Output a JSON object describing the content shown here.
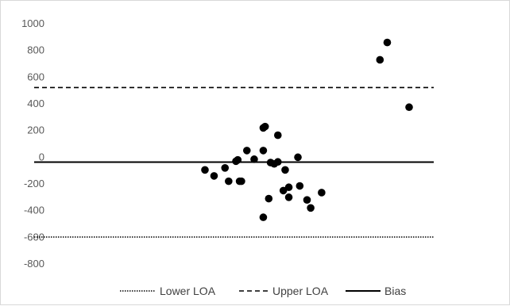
{
  "chart_data": {
    "type": "scatter",
    "title": "",
    "xlabel": "",
    "ylabel": "",
    "ylim": [
      -800,
      1000
    ],
    "y_ticks": [
      "1000",
      "800",
      "600",
      "400",
      "200",
      "0",
      "-200",
      "-400",
      "-600",
      "-800"
    ],
    "x_tick_labels_visible": false,
    "grid": false,
    "legend_position": "bottom",
    "marker_color": "#000000",
    "reference_lines": [
      {
        "name": "Lower LOA",
        "y": -598,
        "style": "dotted"
      },
      {
        "name": "Upper LOA",
        "y": 522,
        "style": "dashed"
      },
      {
        "name": "Bias",
        "y": -37,
        "style": "solid"
      }
    ],
    "legend": [
      "Lower LOA",
      "Upper LOA",
      "Bias"
    ],
    "series": [
      {
        "points": [
          {
            "x": 0.0,
            "y": -95
          },
          {
            "x": 0.05,
            "y": -140
          },
          {
            "x": 0.11,
            "y": -80
          },
          {
            "x": 0.13,
            "y": -180
          },
          {
            "x": 0.17,
            "y": -30
          },
          {
            "x": 0.18,
            "y": -20
          },
          {
            "x": 0.19,
            "y": -180
          },
          {
            "x": 0.2,
            "y": -180
          },
          {
            "x": 0.23,
            "y": 50
          },
          {
            "x": 0.27,
            "y": -15
          },
          {
            "x": 0.32,
            "y": 220
          },
          {
            "x": 0.33,
            "y": 230
          },
          {
            "x": 0.32,
            "y": 50
          },
          {
            "x": 0.32,
            "y": -450
          },
          {
            "x": 0.35,
            "y": -310
          },
          {
            "x": 0.36,
            "y": -40
          },
          {
            "x": 0.38,
            "y": -50
          },
          {
            "x": 0.4,
            "y": -35
          },
          {
            "x": 0.4,
            "y": 165
          },
          {
            "x": 0.43,
            "y": -250
          },
          {
            "x": 0.44,
            "y": -95
          },
          {
            "x": 0.46,
            "y": -225
          },
          {
            "x": 0.46,
            "y": -300
          },
          {
            "x": 0.51,
            "y": 0
          },
          {
            "x": 0.52,
            "y": -215
          },
          {
            "x": 0.56,
            "y": -320
          },
          {
            "x": 0.58,
            "y": -380
          },
          {
            "x": 0.64,
            "y": -265
          },
          {
            "x": 0.96,
            "y": 730
          },
          {
            "x": 1.0,
            "y": 860
          },
          {
            "x": 1.12,
            "y": 375
          }
        ]
      }
    ]
  }
}
